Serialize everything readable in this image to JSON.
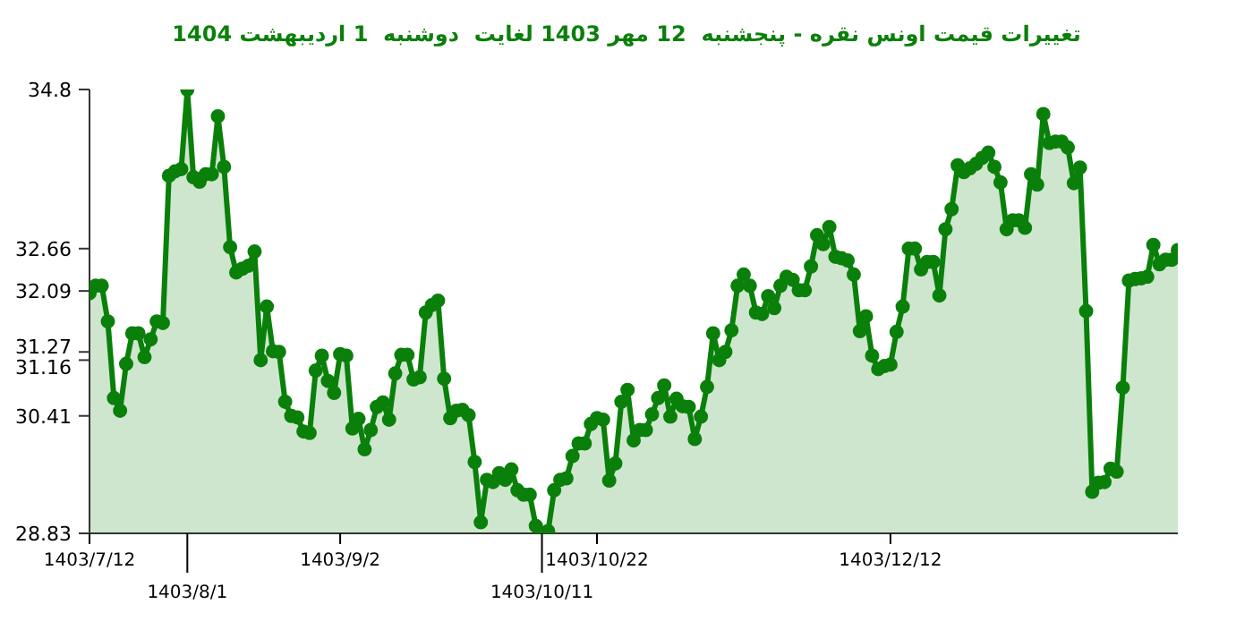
{
  "chart_data": {
    "type": "area",
    "title": "تغییرات قیمت اونس نقره - پنجشنبه  12 مهر 1403 لغایت  دوشنبه  1 اردیبهشت 1404",
    "categories": [
      "1403/7/12",
      null,
      null,
      null,
      null,
      null,
      null,
      null,
      null,
      null,
      null,
      null,
      null,
      null,
      null,
      null,
      "1403/8/1",
      null,
      null,
      null,
      null,
      null,
      null,
      null,
      null,
      null,
      null,
      null,
      null,
      null,
      null,
      null,
      null,
      null,
      null,
      null,
      null,
      null,
      null,
      null,
      null,
      "1403/9/2",
      null,
      null,
      null,
      null,
      null,
      null,
      null,
      null,
      null,
      null,
      null,
      null,
      null,
      null,
      null,
      null,
      null,
      null,
      null,
      null,
      null,
      null,
      null,
      null,
      null,
      null,
      null,
      null,
      null,
      null,
      null,
      null,
      "1403/10/11",
      null,
      null,
      null,
      null,
      null,
      null,
      null,
      null,
      "1403/10/22",
      null,
      null,
      null,
      null,
      null,
      null,
      null,
      null,
      null,
      null,
      null,
      null,
      null,
      null,
      null,
      null,
      null,
      null,
      null,
      null,
      null,
      null,
      null,
      null,
      null,
      null,
      null,
      null,
      null,
      null,
      null,
      null,
      null,
      null,
      null,
      null,
      null,
      null,
      null,
      null,
      null,
      null,
      null,
      null,
      null,
      null,
      null,
      "1403/12/12",
      null,
      null,
      null,
      null,
      null,
      null,
      null,
      null,
      null,
      null,
      null,
      null,
      null,
      null,
      null,
      null,
      null,
      null,
      null,
      null,
      null,
      null,
      null,
      null,
      null,
      null,
      null,
      null,
      null,
      null,
      null,
      null,
      null,
      null,
      null,
      null,
      null,
      null,
      null,
      null,
      null,
      null,
      null,
      null,
      null,
      null,
      null
    ],
    "series": [
      {
        "color": "#0a800a",
        "values": [
          32.06,
          32.16,
          32.16,
          31.68,
          30.65,
          30.48,
          31.11,
          31.52,
          31.52,
          31.2,
          31.44,
          31.68,
          31.66,
          33.64,
          33.7,
          33.73,
          34.8,
          33.62,
          33.56,
          33.66,
          33.66,
          34.44,
          33.76,
          32.68,
          32.34,
          32.39,
          32.43,
          32.62,
          31.16,
          31.88,
          31.28,
          31.27,
          30.6,
          30.41,
          30.39,
          30.2,
          30.18,
          31.02,
          31.22,
          30.88,
          30.72,
          31.24,
          31.22,
          30.24,
          30.37,
          29.96,
          30.22,
          30.53,
          30.59,
          30.36,
          30.98,
          31.23,
          31.23,
          30.9,
          30.93,
          31.8,
          31.9,
          31.96,
          30.91,
          30.38,
          30.48,
          30.49,
          30.42,
          29.79,
          28.98,
          29.55,
          29.52,
          29.64,
          29.55,
          29.69,
          29.41,
          29.35,
          29.35,
          28.93,
          28.83,
          28.86,
          29.41,
          29.55,
          29.57,
          29.87,
          30.04,
          30.04,
          30.3,
          30.38,
          30.36,
          29.54,
          29.77,
          30.6,
          30.76,
          30.08,
          30.22,
          30.22,
          30.43,
          30.65,
          30.82,
          30.4,
          30.64,
          30.54,
          30.53,
          30.1,
          30.4,
          30.8,
          31.52,
          31.16,
          31.27,
          31.56,
          32.16,
          32.31,
          32.16,
          31.8,
          31.78,
          32.02,
          31.86,
          32.16,
          32.28,
          32.24,
          32.1,
          32.1,
          32.42,
          32.84,
          32.72,
          32.95,
          32.55,
          32.53,
          32.5,
          32.31,
          31.55,
          31.75,
          31.22,
          31.04,
          31.08,
          31.1,
          31.54,
          31.88,
          32.66,
          32.66,
          32.38,
          32.48,
          32.48,
          32.03,
          32.92,
          33.19,
          33.78,
          33.69,
          33.74,
          33.8,
          33.88,
          33.95,
          33.76,
          33.55,
          32.92,
          33.04,
          33.04,
          32.94,
          33.66,
          33.52,
          34.47,
          34.08,
          34.1,
          34.1,
          34.02,
          33.54,
          33.75,
          31.82,
          29.39,
          29.51,
          29.52,
          29.7,
          29.66,
          30.79,
          32.23,
          32.25,
          32.26,
          32.28,
          32.71,
          32.45,
          32.51,
          32.51,
          32.64
        ]
      }
    ],
    "ylim": [
      28.83,
      34.8
    ],
    "yticks": [
      28.83,
      30.41,
      31.16,
      31.27,
      32.09,
      32.66,
      34.8
    ],
    "marker": "circle"
  }
}
